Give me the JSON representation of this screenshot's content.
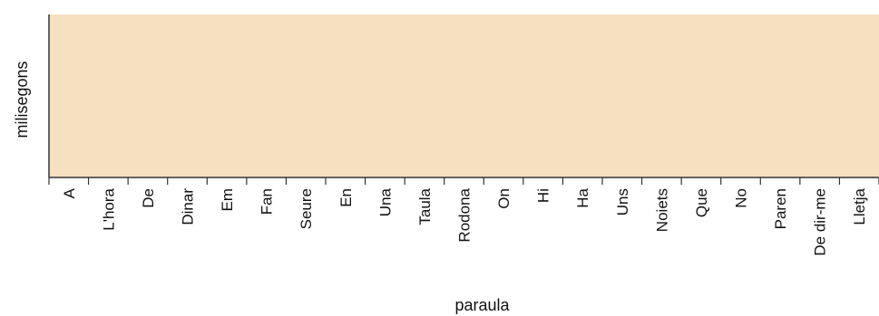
{
  "chart_data": {
    "type": "bar",
    "title": "",
    "xlabel": "paraula",
    "ylabel": "milisegons",
    "categories": [
      "A",
      "L'hora",
      "De",
      "Dinar",
      "Em",
      "Fan",
      "Seure",
      "En",
      "Una",
      "Taula",
      "Rodona",
      "On",
      "Hi",
      "Ha",
      "Uns",
      "Noiets",
      "Que",
      "No",
      "Paren",
      "De dir-me",
      "Lletja"
    ],
    "series": [
      {
        "values": [
          null,
          null,
          null,
          null,
          null,
          null,
          null,
          null,
          null,
          null,
          null,
          null,
          null,
          null,
          null,
          null,
          null,
          null,
          null,
          null,
          null
        ]
      }
    ],
    "grid": false,
    "colors": {
      "plot_background": "#f5e0bf",
      "axis": "#333333",
      "text": "#111111"
    }
  }
}
